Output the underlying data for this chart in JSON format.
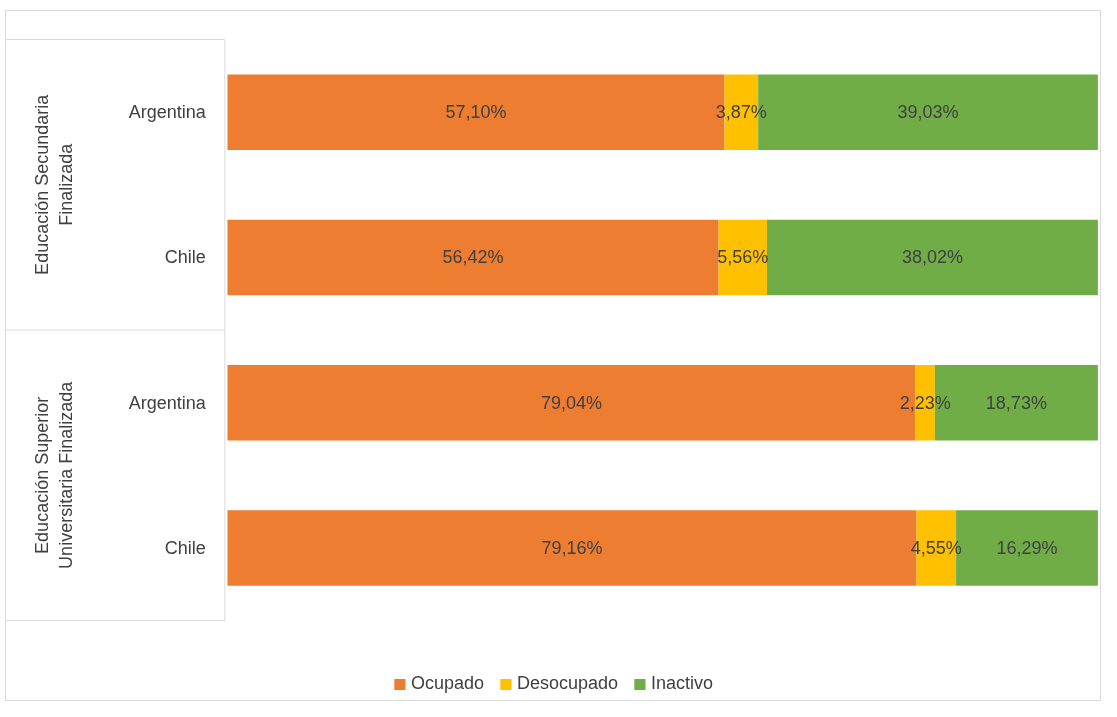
{
  "chart_data": {
    "type": "bar",
    "orientation": "horizontal",
    "stacked": true,
    "categories": [
      "Argentina",
      "Chile",
      "Argentina",
      "Chile"
    ],
    "series": [
      {
        "name": "Ocupado",
        "color": "#ed7d31",
        "values": [
          57.1,
          56.42,
          79.04,
          79.16
        ],
        "value_labels": [
          "57,10%",
          "56,42%",
          "79,04%",
          "79,16%"
        ]
      },
      {
        "name": "Desocupado",
        "color": "#ffc000",
        "values": [
          3.87,
          5.56,
          2.23,
          4.55
        ],
        "value_labels": [
          "3,87%",
          "5,56%",
          "2,23%",
          "4,55%"
        ]
      },
      {
        "name": "Inactivo",
        "color": "#70ad47",
        "values": [
          39.03,
          38.02,
          18.73,
          16.29
        ],
        "value_labels": [
          "39,03%",
          "38,02%",
          "18,73%",
          "16,29%"
        ]
      }
    ],
    "annotations": [
      "Educación Secundaria Finalizada",
      "Educación Superior Universitaria Finalizada"
    ],
    "legend": "bottom",
    "grid": false
  }
}
